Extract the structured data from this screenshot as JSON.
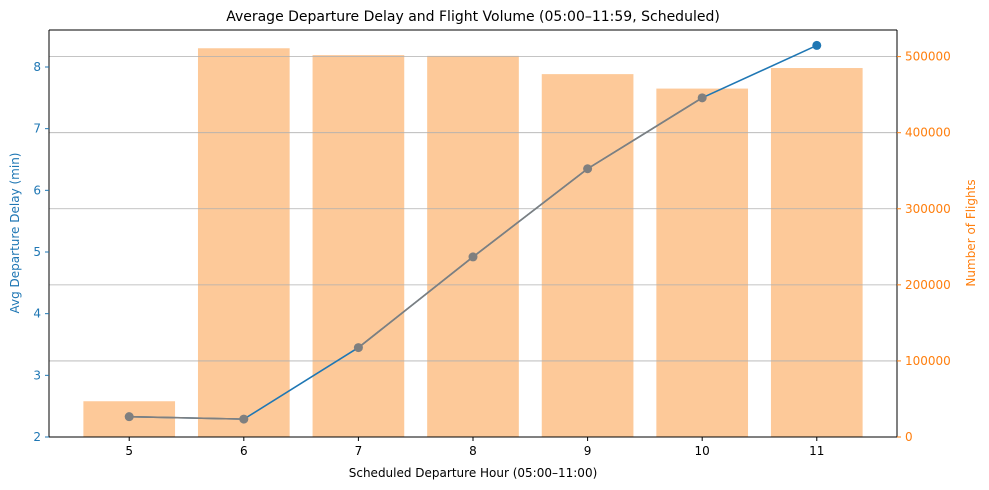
{
  "chart_data": {
    "type": "bar+line",
    "title": "Average Departure Delay and Flight Volume (05:00–11:59, Scheduled)",
    "xlabel": "Scheduled Departure Hour (05:00–11:00)",
    "ylabel_left": "Avg Departure Delay (min)",
    "ylabel_right": "Number of Flights",
    "categories": [
      "5",
      "6",
      "7",
      "8",
      "9",
      "10",
      "11"
    ],
    "x": [
      5,
      6,
      7,
      8,
      9,
      10,
      11
    ],
    "xlim": [
      4.3,
      11.7
    ],
    "y_left_lim": [
      2.0,
      8.6
    ],
    "y_left_ticks": [
      "2",
      "3",
      "4",
      "5",
      "6",
      "7",
      "8"
    ],
    "y_right_lim": [
      0,
      535000
    ],
    "y_right_ticks": [
      "0",
      "100000",
      "200000",
      "300000",
      "400000",
      "500000"
    ],
    "grid": "horizontal (right axis)",
    "series": [
      {
        "kind": "bar",
        "axis": "right",
        "values": [
          47000,
          511000,
          502000,
          501000,
          477000,
          458000,
          485000
        ]
      },
      {
        "kind": "line",
        "axis": "left",
        "values": [
          2.33,
          2.29,
          3.45,
          4.92,
          6.35,
          7.5,
          8.35
        ]
      }
    ],
    "colors": {
      "bar": "#fdc999",
      "line": "#1f77b4",
      "marker_overlay": "#7f7f7f",
      "left_axis": "#1f77b4",
      "right_axis": "#ff7f0e",
      "grid": "#b0b0b0"
    }
  }
}
